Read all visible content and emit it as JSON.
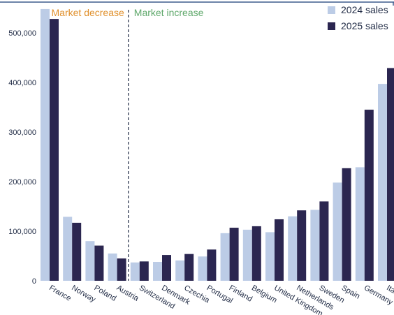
{
  "colors": {
    "series_2024": "#bccce6",
    "series_2025": "#2b2650",
    "decrease_label": "#e0902c",
    "increase_label": "#5fa86b",
    "axis": "#1f2a44",
    "top_border": "#3c5a8c"
  },
  "annotations": {
    "decrease": "Market decrease",
    "increase": "Market increase"
  },
  "chart_data": {
    "type": "bar",
    "categories": [
      "France",
      "Norway",
      "Poland",
      "Austria",
      "Switzerland",
      "Denmark",
      "Czechia",
      "Portugal",
      "Finland",
      "Belgium",
      "United Kingdom",
      "Netherlands",
      "Sweden",
      "Spain",
      "Germany",
      "Italy"
    ],
    "series": [
      {
        "name": "2024 sales",
        "values": [
          548000,
          129000,
          80000,
          55000,
          37000,
          38000,
          41000,
          49000,
          96000,
          103000,
          98000,
          130000,
          143000,
          198000,
          229000,
          397000
        ]
      },
      {
        "name": "2025 sales",
        "values": [
          528000,
          117000,
          71000,
          45000,
          39000,
          52000,
          54000,
          63000,
          107000,
          110000,
          124000,
          142000,
          160000,
          227000,
          345000,
          429000
        ]
      }
    ],
    "ylim": [
      0,
      550000
    ],
    "yticks": [
      0,
      100000,
      200000,
      300000,
      400000,
      500000
    ],
    "ytick_labels": [
      "0",
      "100,000",
      "200,000",
      "300,000",
      "400,000",
      "500,000"
    ],
    "divider_after_category": "Austria",
    "legend_position": "top-right",
    "grid": false
  }
}
